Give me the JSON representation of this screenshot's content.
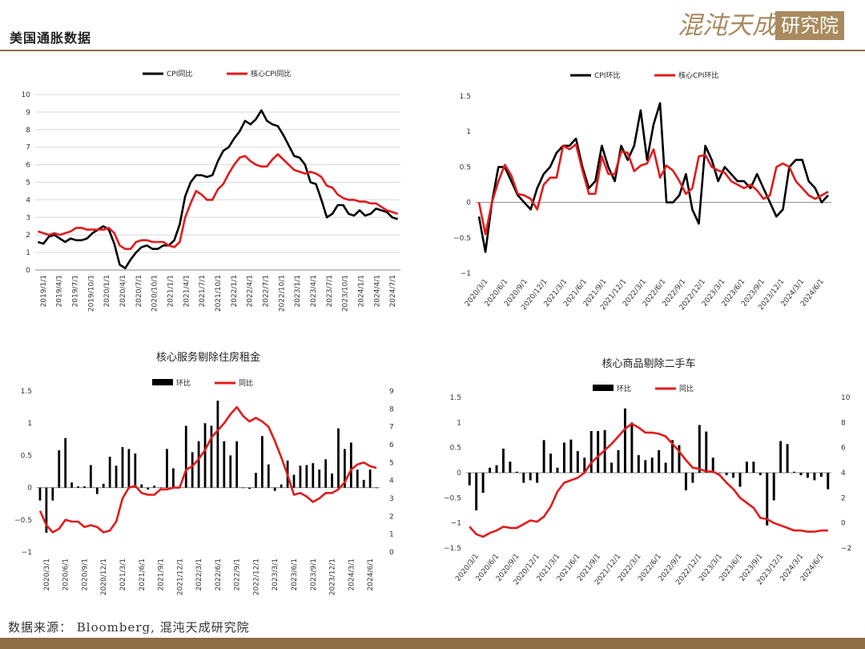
{
  "header": {
    "title": "美国通胀数据",
    "logo_text": "混沌天成",
    "logo_box_text": "研究院"
  },
  "footer": {
    "source": "数据来源： Bloomberg, 混沌天成研究院"
  },
  "colors": {
    "black": "#000000",
    "red": "#e31a1c",
    "brand": "#8c6d45"
  },
  "chart_data": [
    {
      "id": "cpi-yoy",
      "type": "line",
      "title": "",
      "legend": [
        "CPI同比",
        "核心CPI同比"
      ],
      "ylim": [
        0,
        10
      ],
      "yticks": [
        0,
        1,
        2,
        3,
        4,
        5,
        6,
        7,
        8,
        9,
        10
      ],
      "xtick_labels": [
        "2019/1/1",
        "2019/4/1",
        "2019/7/1",
        "2019/10/1",
        "2020/1/1",
        "2020/4/1",
        "2020/7/1",
        "2020/10/1",
        "2021/1/1",
        "2021/4/1",
        "2021/7/1",
        "2021/10/1",
        "2022/1/1",
        "2022/4/1",
        "2022/7/1",
        "2022/10/1",
        "2023/1/1",
        "2023/4/1",
        "2023/7/1",
        "2023/10/1",
        "2024/1/1",
        "2024/4/1",
        "2024/7/1"
      ],
      "series": [
        {
          "name": "CPI同比",
          "color": "#000000",
          "values": [
            1.6,
            1.5,
            1.9,
            2.0,
            1.8,
            1.6,
            1.8,
            1.7,
            1.7,
            1.8,
            2.1,
            2.3,
            2.5,
            2.3,
            1.5,
            0.3,
            0.1,
            0.6,
            1.0,
            1.3,
            1.4,
            1.2,
            1.2,
            1.4,
            1.4,
            1.7,
            2.6,
            4.2,
            5.0,
            5.4,
            5.4,
            5.3,
            5.4,
            6.2,
            6.8,
            7.0,
            7.5,
            7.9,
            8.5,
            8.3,
            8.6,
            9.1,
            8.5,
            8.3,
            8.2,
            7.7,
            7.1,
            6.5,
            6.4,
            6.0,
            5.0,
            4.9,
            4.0,
            3.0,
            3.2,
            3.7,
            3.7,
            3.2,
            3.1,
            3.4,
            3.1,
            3.2,
            3.5,
            3.4,
            3.3,
            3.0,
            2.9
          ]
        },
        {
          "name": "核心CPI同比",
          "color": "#e31a1c",
          "values": [
            2.2,
            2.1,
            2.0,
            2.1,
            2.0,
            2.1,
            2.2,
            2.4,
            2.4,
            2.3,
            2.3,
            2.3,
            2.3,
            2.4,
            2.1,
            1.4,
            1.2,
            1.2,
            1.6,
            1.7,
            1.7,
            1.6,
            1.6,
            1.6,
            1.4,
            1.3,
            1.6,
            3.0,
            3.8,
            4.5,
            4.3,
            4.0,
            4.0,
            4.6,
            4.9,
            5.5,
            6.0,
            6.4,
            6.5,
            6.2,
            6.0,
            5.9,
            5.9,
            6.3,
            6.6,
            6.3,
            6.0,
            5.7,
            5.6,
            5.5,
            5.6,
            5.5,
            5.3,
            4.8,
            4.7,
            4.3,
            4.1,
            4.0,
            4.0,
            3.9,
            3.9,
            3.8,
            3.8,
            3.6,
            3.4,
            3.3,
            3.2
          ]
        }
      ]
    },
    {
      "id": "cpi-mom",
      "type": "line",
      "title": "",
      "legend": [
        "CPI环比",
        "核心CPI环比"
      ],
      "ylim": [
        -1,
        1.5
      ],
      "yticks": [
        -1,
        -0.5,
        0,
        0.5,
        1,
        1.5
      ],
      "ytick_labels": [
        "−1",
        "−0.5",
        "0",
        "0.5",
        "1",
        "1.5"
      ],
      "xtick_labels": [
        "2020/3/1",
        "2020/6/1",
        "2020/9/1",
        "2020/12/1",
        "2021/3/1",
        "2021/6/1",
        "2021/9/1",
        "2021/12/1",
        "2022/3/1",
        "2022/6/1",
        "2022/9/1",
        "2022/12/1",
        "2023/3/1",
        "2023/6/1",
        "2023/9/1",
        "2023/12/1",
        "2024/3/1",
        "2024/6/1"
      ],
      "series": [
        {
          "name": "CPI环比",
          "color": "#000000",
          "values": [
            -0.2,
            -0.7,
            0.0,
            0.5,
            0.5,
            0.3,
            0.1,
            0.0,
            -0.1,
            0.2,
            0.4,
            0.5,
            0.7,
            0.8,
            0.8,
            0.9,
            0.5,
            0.2,
            0.3,
            0.8,
            0.5,
            0.3,
            0.8,
            0.6,
            0.8,
            1.3,
            0.6,
            1.1,
            1.4,
            0.0,
            0.0,
            0.1,
            0.4,
            -0.1,
            -0.3,
            0.8,
            0.6,
            0.3,
            0.5,
            0.4,
            0.3,
            0.3,
            0.2,
            0.4,
            0.2,
            0.0,
            -0.2,
            -0.1,
            0.5,
            0.6,
            0.6,
            0.3,
            0.2,
            0.0,
            0.1
          ]
        },
        {
          "name": "核心CPI环比",
          "color": "#e31a1c",
          "values": [
            0.0,
            -0.45,
            0.0,
            0.3,
            0.53,
            0.38,
            0.12,
            0.1,
            0.05,
            -0.1,
            0.25,
            0.35,
            0.35,
            0.8,
            0.75,
            0.82,
            0.45,
            0.12,
            0.12,
            0.65,
            0.4,
            0.4,
            0.72,
            0.7,
            0.44,
            0.52,
            0.55,
            0.75,
            0.35,
            0.52,
            0.45,
            0.3,
            0.12,
            0.2,
            0.65,
            0.67,
            0.5,
            0.45,
            0.42,
            0.3,
            0.25,
            0.2,
            0.25,
            0.17,
            0.05,
            0.1,
            0.5,
            0.55,
            0.5,
            0.3,
            0.2,
            0.1,
            0.05,
            0.1,
            0.15
          ]
        }
      ]
    },
    {
      "id": "core-services-ex-housing",
      "type": "bar+line",
      "title": "核心服务剔除住房租金",
      "legend": [
        "环比",
        "同比"
      ],
      "ylim_left": [
        -1,
        1.5
      ],
      "yticks_left": [
        -1,
        -0.5,
        0,
        0.5,
        1,
        1.5
      ],
      "ytick_labels_left": [
        "−1",
        "−0.5",
        "0",
        "0.5",
        "1",
        "1.5"
      ],
      "ylim_right": [
        0,
        9
      ],
      "yticks_right": [
        0,
        1,
        2,
        3,
        4,
        5,
        6,
        7,
        8,
        9
      ],
      "xtick_labels": [
        "2020/3/1",
        "2020/6/1",
        "2020/9/1",
        "2020/12/1",
        "2021/3/1",
        "2021/6/1",
        "2021/9/1",
        "2021/12/1",
        "2022/3/1",
        "2022/6/1",
        "2022/9/1",
        "2022/12/1",
        "2023/3/1",
        "2023/6/1",
        "2023/9/1",
        "2023/12/1",
        "2024/3/1",
        "2024/6/1"
      ],
      "series": [
        {
          "name": "环比",
          "type": "bar",
          "color": "#000000",
          "axis": "left",
          "values": [
            -0.2,
            -0.7,
            -0.2,
            0.58,
            0.77,
            0.08,
            0.02,
            0.02,
            0.35,
            -0.1,
            0.06,
            0.48,
            0.34,
            0.63,
            0.6,
            0.53,
            0.05,
            -0.03,
            0.03,
            0.0,
            0.6,
            0.3,
            0.02,
            0.96,
            0.55,
            0.72,
            1.0,
            0.96,
            1.35,
            0.72,
            0.5,
            0.72,
            0.0,
            -0.02,
            0.23,
            0.8,
            0.36,
            -0.05,
            0.05,
            0.42,
            0.2,
            0.34,
            0.35,
            0.38,
            0.28,
            0.44,
            0.22,
            0.92,
            0.6,
            0.7,
            0.28,
            0.12,
            0.28,
            0.0
          ]
        },
        {
          "name": "同比",
          "type": "line",
          "color": "#e31a1c",
          "axis": "right",
          "values": [
            2.3,
            1.5,
            1.1,
            1.3,
            1.8,
            1.7,
            1.7,
            1.4,
            1.5,
            1.4,
            1.1,
            1.2,
            1.7,
            3.0,
            3.6,
            3.7,
            3.3,
            3.2,
            3.2,
            3.5,
            3.5,
            3.6,
            3.6,
            4.6,
            4.8,
            5.2,
            5.7,
            6.4,
            6.8,
            7.2,
            7.7,
            8.1,
            7.6,
            7.3,
            7.5,
            7.3,
            7.0,
            6.2,
            5.3,
            4.3,
            3.2,
            3.3,
            3.1,
            2.8,
            3.0,
            3.3,
            3.3,
            3.5,
            3.9,
            4.6,
            4.9,
            5.0,
            4.8,
            4.7
          ]
        }
      ]
    },
    {
      "id": "core-goods-ex-used-cars",
      "type": "bar+line",
      "title": "核心商品剔除二手车",
      "legend": [
        "环比",
        "同比"
      ],
      "ylim_left": [
        -1.5,
        1.5
      ],
      "yticks_left": [
        -1.5,
        -1,
        -0.5,
        0,
        0.5,
        1,
        1.5
      ],
      "ytick_labels_left": [
        "−1.5",
        "−1",
        "−0.5",
        "0",
        "0.5",
        "1",
        "1.5"
      ],
      "ylim_right": [
        -2,
        10
      ],
      "yticks_right": [
        -2,
        0,
        2,
        4,
        6,
        8,
        10
      ],
      "ytick_labels_right": [
        "−2",
        "0",
        "2",
        "4",
        "6",
        "8",
        "10"
      ],
      "xtick_labels": [
        "2020/3/1",
        "2020/6/1",
        "2020/9/1",
        "2020/12/1",
        "2021/3/1",
        "2021/6/1",
        "2021/9/1",
        "2021/12/1",
        "2022/3/1",
        "2022/6/1",
        "2022/9/1",
        "2022/12/1",
        "2023/3/1",
        "2023/6/1",
        "2023/9/1",
        "2023/12/1",
        "2024/3/1",
        "2024/6/1"
      ],
      "series": [
        {
          "name": "环比",
          "type": "bar",
          "color": "#000000",
          "axis": "left",
          "values": [
            -0.25,
            -0.75,
            -0.4,
            0.1,
            0.15,
            0.48,
            0.22,
            0.02,
            -0.2,
            -0.15,
            -0.2,
            0.65,
            0.38,
            0.1,
            0.6,
            0.66,
            0.43,
            0.3,
            0.83,
            0.83,
            0.85,
            0.2,
            0.45,
            1.28,
            1.0,
            0.35,
            0.25,
            0.3,
            0.45,
            0.2,
            0.65,
            0.55,
            -0.35,
            -0.2,
            0.95,
            0.82,
            0.3,
            0.0,
            -0.05,
            -0.1,
            -0.28,
            0.22,
            0.22,
            -0.05,
            -1.05,
            -0.55,
            0.63,
            0.57,
            0.02,
            -0.05,
            -0.1,
            -0.15,
            -0.08,
            -0.33
          ]
        },
        {
          "name": "同比",
          "type": "line",
          "color": "#e31a1c",
          "axis": "right",
          "values": [
            -0.3,
            -0.9,
            -1.1,
            -0.8,
            -0.6,
            -0.3,
            -0.4,
            -0.4,
            -0.1,
            0.2,
            0.1,
            0.5,
            1.3,
            2.5,
            3.2,
            3.4,
            3.6,
            4.0,
            4.8,
            5.3,
            5.8,
            6.3,
            6.9,
            7.5,
            7.9,
            7.6,
            7.2,
            7.2,
            7.1,
            6.9,
            6.3,
            5.7,
            5.0,
            4.4,
            4.3,
            4.1,
            4.1,
            3.8,
            3.2,
            2.7,
            2.0,
            1.6,
            1.2,
            0.4,
            0.3,
            0.0,
            -0.2,
            -0.4,
            -0.6,
            -0.6,
            -0.7,
            -0.7,
            -0.6,
            -0.6
          ]
        }
      ]
    }
  ]
}
